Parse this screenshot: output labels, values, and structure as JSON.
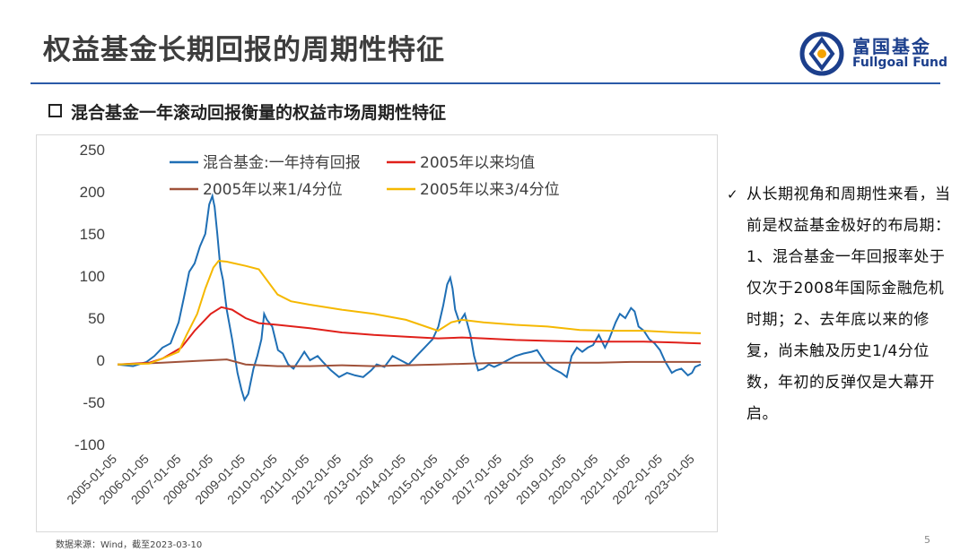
{
  "title": "权益基金长期回报的周期性特征",
  "logo": {
    "cn": "富国基金",
    "en": "Fullgoal Fund"
  },
  "subtitle": "混合基金一年滚动回报衡量的权益市场周期性特征",
  "side_text": "从长期视角和周期性来看，当前是权益基金极好的布局期：1、混合基金一年回报率处于仅次于2008年国际金融危机时期；2、去年底以来的修复，尚未触及历史1/4分位数，年初的反弹仅是大幕开启。",
  "source": "数据来源：Wind，截至2023-03-10",
  "page_number": "5",
  "colors": {
    "brand": "#1c3f8c",
    "rule": "#2a5aa8"
  },
  "chart_data": {
    "type": "line",
    "title": "",
    "xlabel": "",
    "ylabel": "",
    "ylim": [
      -100,
      250
    ],
    "yticks": [
      250,
      200,
      150,
      100,
      50,
      0,
      -50,
      -100
    ],
    "x_tick_labels": [
      "2005-01-05",
      "2006-01-05",
      "2007-01-05",
      "2008-01-05",
      "2009-01-05",
      "2010-01-05",
      "2011-01-05",
      "2012-01-05",
      "2013-01-05",
      "2014-01-05",
      "2015-01-05",
      "2016-01-05",
      "2017-01-05",
      "2018-01-05",
      "2019-01-05",
      "2020-01-05",
      "2021-01-05",
      "2022-01-05",
      "2023-01-05"
    ],
    "grid": false,
    "legend_position": "top",
    "series": [
      {
        "name": "混合基金:一年持有回报",
        "color": "#1f6fb5",
        "points": [
          [
            "2005-01-05",
            -5
          ],
          [
            "2005-07-01",
            -7
          ],
          [
            "2005-12-01",
            -2
          ],
          [
            "2006-03-01",
            5
          ],
          [
            "2006-06-01",
            15
          ],
          [
            "2006-09-01",
            20
          ],
          [
            "2006-12-01",
            45
          ],
          [
            "2007-02-01",
            75
          ],
          [
            "2007-04-01",
            105
          ],
          [
            "2007-06-01",
            115
          ],
          [
            "2007-08-01",
            135
          ],
          [
            "2007-10-01",
            150
          ],
          [
            "2007-11-15",
            185
          ],
          [
            "2007-12-20",
            195
          ],
          [
            "2008-01-15",
            182
          ],
          [
            "2008-02-15",
            150
          ],
          [
            "2008-03-20",
            110
          ],
          [
            "2008-04-20",
            95
          ],
          [
            "2008-06-01",
            60
          ],
          [
            "2008-08-01",
            25
          ],
          [
            "2008-10-01",
            -15
          ],
          [
            "2008-11-15",
            -35
          ],
          [
            "2008-12-20",
            -47
          ],
          [
            "2009-02-01",
            -40
          ],
          [
            "2009-04-01",
            -10
          ],
          [
            "2009-05-15",
            5
          ],
          [
            "2009-07-01",
            25
          ],
          [
            "2009-08-01",
            55
          ],
          [
            "2009-09-01",
            48
          ],
          [
            "2009-11-01",
            40
          ],
          [
            "2010-01-05",
            12
          ],
          [
            "2010-03-01",
            8
          ],
          [
            "2010-05-01",
            -5
          ],
          [
            "2010-07-01",
            -10
          ],
          [
            "2010-09-01",
            0
          ],
          [
            "2010-11-01",
            10
          ],
          [
            "2011-01-05",
            0
          ],
          [
            "2011-04-01",
            5
          ],
          [
            "2011-06-01",
            -2
          ],
          [
            "2011-09-01",
            -12
          ],
          [
            "2011-12-01",
            -20
          ],
          [
            "2012-03-01",
            -15
          ],
          [
            "2012-06-01",
            -18
          ],
          [
            "2012-09-01",
            -20
          ],
          [
            "2012-12-01",
            -12
          ],
          [
            "2013-02-01",
            -5
          ],
          [
            "2013-05-01",
            -8
          ],
          [
            "2013-08-01",
            5
          ],
          [
            "2013-11-01",
            0
          ],
          [
            "2014-02-01",
            -5
          ],
          [
            "2014-05-01",
            5
          ],
          [
            "2014-08-01",
            15
          ],
          [
            "2014-11-01",
            25
          ],
          [
            "2015-01-05",
            40
          ],
          [
            "2015-03-01",
            65
          ],
          [
            "2015-04-15",
            90
          ],
          [
            "2015-05-20",
            98
          ],
          [
            "2015-06-15",
            85
          ],
          [
            "2015-07-15",
            60
          ],
          [
            "2015-09-01",
            45
          ],
          [
            "2015-11-01",
            55
          ],
          [
            "2016-01-05",
            30
          ],
          [
            "2016-02-15",
            5
          ],
          [
            "2016-04-01",
            -12
          ],
          [
            "2016-06-01",
            -10
          ],
          [
            "2016-08-01",
            -5
          ],
          [
            "2016-10-01",
            -8
          ],
          [
            "2016-12-01",
            -5
          ],
          [
            "2017-03-01",
            0
          ],
          [
            "2017-06-01",
            5
          ],
          [
            "2017-09-01",
            8
          ],
          [
            "2017-12-01",
            10
          ],
          [
            "2018-02-01",
            12
          ],
          [
            "2018-05-01",
            -2
          ],
          [
            "2018-08-01",
            -10
          ],
          [
            "2018-11-01",
            -15
          ],
          [
            "2019-01-05",
            -20
          ],
          [
            "2019-03-01",
            5
          ],
          [
            "2019-05-01",
            15
          ],
          [
            "2019-07-01",
            10
          ],
          [
            "2019-09-01",
            15
          ],
          [
            "2019-11-01",
            18
          ],
          [
            "2020-01-05",
            30
          ],
          [
            "2020-03-15",
            15
          ],
          [
            "2020-05-01",
            25
          ],
          [
            "2020-07-15",
            45
          ],
          [
            "2020-09-01",
            55
          ],
          [
            "2020-11-01",
            50
          ],
          [
            "2021-01-05",
            62
          ],
          [
            "2021-02-15",
            58
          ],
          [
            "2021-04-01",
            40
          ],
          [
            "2021-06-01",
            35
          ],
          [
            "2021-08-01",
            25
          ],
          [
            "2021-10-01",
            20
          ],
          [
            "2021-12-01",
            12
          ],
          [
            "2022-02-01",
            -2
          ],
          [
            "2022-04-15",
            -15
          ],
          [
            "2022-06-01",
            -12
          ],
          [
            "2022-08-01",
            -10
          ],
          [
            "2022-10-15",
            -18
          ],
          [
            "2022-12-01",
            -15
          ],
          [
            "2023-01-05",
            -8
          ],
          [
            "2023-03-10",
            -5
          ]
        ]
      },
      {
        "name": "2005年以来均值",
        "color": "#e0201a",
        "points": [
          [
            "2005-01-05",
            -5
          ],
          [
            "2006-01-01",
            -3
          ],
          [
            "2006-06-01",
            2
          ],
          [
            "2007-01-01",
            15
          ],
          [
            "2007-06-01",
            35
          ],
          [
            "2007-12-01",
            55
          ],
          [
            "2008-04-01",
            63
          ],
          [
            "2008-08-01",
            60
          ],
          [
            "2009-01-01",
            50
          ],
          [
            "2009-06-01",
            44
          ],
          [
            "2010-01-01",
            42
          ],
          [
            "2011-01-01",
            38
          ],
          [
            "2012-01-01",
            33
          ],
          [
            "2013-01-01",
            30
          ],
          [
            "2014-01-01",
            28
          ],
          [
            "2015-01-01",
            26
          ],
          [
            "2015-10-01",
            27
          ],
          [
            "2016-06-01",
            26
          ],
          [
            "2017-06-01",
            24
          ],
          [
            "2018-06-01",
            23
          ],
          [
            "2019-06-01",
            22
          ],
          [
            "2020-06-01",
            22
          ],
          [
            "2021-06-01",
            22
          ],
          [
            "2022-06-01",
            21
          ],
          [
            "2023-03-10",
            20
          ]
        ]
      },
      {
        "name": "2005年以来1/4分位",
        "color": "#a0523a",
        "points": [
          [
            "2005-01-05",
            -5
          ],
          [
            "2006-06-01",
            -3
          ],
          [
            "2007-06-01",
            -1
          ],
          [
            "2008-06-01",
            1
          ],
          [
            "2009-01-01",
            -5
          ],
          [
            "2010-01-01",
            -7
          ],
          [
            "2011-01-01",
            -7
          ],
          [
            "2012-01-01",
            -6
          ],
          [
            "2013-01-01",
            -7
          ],
          [
            "2014-01-01",
            -6
          ],
          [
            "2015-01-01",
            -5
          ],
          [
            "2016-01-01",
            -4
          ],
          [
            "2017-01-01",
            -3
          ],
          [
            "2018-01-01",
            -3
          ],
          [
            "2019-01-01",
            -3
          ],
          [
            "2020-01-01",
            -3
          ],
          [
            "2021-01-01",
            -2
          ],
          [
            "2022-01-01",
            -2
          ],
          [
            "2023-03-10",
            -2
          ]
        ]
      },
      {
        "name": "2005年以来3/4分位",
        "color": "#f5b800",
        "points": [
          [
            "2005-01-05",
            -5
          ],
          [
            "2006-01-01",
            -4
          ],
          [
            "2006-06-01",
            2
          ],
          [
            "2006-12-01",
            10
          ],
          [
            "2007-03-01",
            30
          ],
          [
            "2007-07-01",
            55
          ],
          [
            "2007-10-01",
            85
          ],
          [
            "2008-01-01",
            110
          ],
          [
            "2008-03-01",
            118
          ],
          [
            "2008-06-01",
            117
          ],
          [
            "2009-01-01",
            112
          ],
          [
            "2009-06-01",
            108
          ],
          [
            "2010-01-01",
            78
          ],
          [
            "2010-06-01",
            70
          ],
          [
            "2011-01-01",
            66
          ],
          [
            "2012-01-01",
            60
          ],
          [
            "2013-01-01",
            55
          ],
          [
            "2014-01-01",
            48
          ],
          [
            "2015-01-01",
            35
          ],
          [
            "2015-06-01",
            45
          ],
          [
            "2015-10-01",
            48
          ],
          [
            "2016-06-01",
            45
          ],
          [
            "2017-06-01",
            42
          ],
          [
            "2018-06-01",
            40
          ],
          [
            "2019-06-01",
            36
          ],
          [
            "2020-06-01",
            35
          ],
          [
            "2021-06-01",
            35
          ],
          [
            "2022-06-01",
            33
          ],
          [
            "2023-03-10",
            32
          ]
        ]
      }
    ]
  }
}
